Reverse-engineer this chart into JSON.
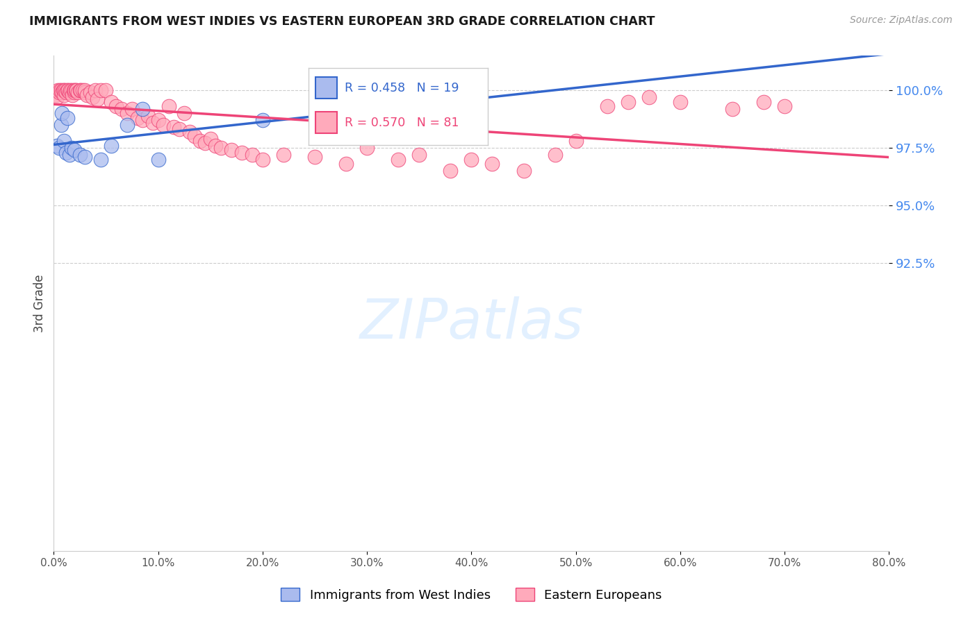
{
  "title": "IMMIGRANTS FROM WEST INDIES VS EASTERN EUROPEAN 3RD GRADE CORRELATION CHART",
  "source": "Source: ZipAtlas.com",
  "ylabel": "3rd Grade",
  "x_min": 0.0,
  "x_max": 80.0,
  "y_min": 80.0,
  "y_max": 101.5,
  "yticks": [
    92.5,
    95.0,
    97.5,
    100.0
  ],
  "xticks": [
    0.0,
    10.0,
    20.0,
    30.0,
    40.0,
    50.0,
    60.0,
    70.0,
    80.0
  ],
  "blue_R": 0.458,
  "blue_N": 19,
  "pink_R": 0.57,
  "pink_N": 81,
  "blue_color": "#AABBEE",
  "pink_color": "#FFAABB",
  "blue_line_color": "#3366CC",
  "pink_line_color": "#EE4477",
  "legend_label_blue": "Immigrants from West Indies",
  "legend_label_pink": "Eastern Europeans",
  "blue_x": [
    0.3,
    0.5,
    0.7,
    0.8,
    1.0,
    1.2,
    1.3,
    1.5,
    1.7,
    2.0,
    2.5,
    3.0,
    4.5,
    5.5,
    7.0,
    8.5,
    10.0,
    20.0,
    35.0
  ],
  "blue_y": [
    97.6,
    97.5,
    98.5,
    99.0,
    97.8,
    97.3,
    98.8,
    97.2,
    97.5,
    97.4,
    97.2,
    97.1,
    97.0,
    97.6,
    98.5,
    99.2,
    97.0,
    98.7,
    99.5
  ],
  "pink_x": [
    0.2,
    0.3,
    0.4,
    0.5,
    0.6,
    0.7,
    0.8,
    0.9,
    1.0,
    1.0,
    1.1,
    1.2,
    1.3,
    1.4,
    1.5,
    1.6,
    1.7,
    1.8,
    1.9,
    2.0,
    2.0,
    2.1,
    2.2,
    2.3,
    2.5,
    2.6,
    2.8,
    3.0,
    3.0,
    3.2,
    3.5,
    3.7,
    4.0,
    4.2,
    4.5,
    5.0,
    5.5,
    6.0,
    6.5,
    7.0,
    7.5,
    8.0,
    8.5,
    9.0,
    9.5,
    10.0,
    10.5,
    11.0,
    11.5,
    12.0,
    12.5,
    13.0,
    13.5,
    14.0,
    14.5,
    15.0,
    15.5,
    16.0,
    17.0,
    18.0,
    19.0,
    20.0,
    22.0,
    25.0,
    28.0,
    30.0,
    33.0,
    35.0,
    38.0,
    40.0,
    42.0,
    45.0,
    48.0,
    50.0,
    53.0,
    55.0,
    57.0,
    60.0,
    65.0,
    68.0,
    70.0
  ],
  "pink_y": [
    99.8,
    99.7,
    100.0,
    99.9,
    100.0,
    100.0,
    99.9,
    100.0,
    99.8,
    100.0,
    100.0,
    99.9,
    100.0,
    100.0,
    99.9,
    100.0,
    100.0,
    99.8,
    100.0,
    99.9,
    100.0,
    100.0,
    100.0,
    99.9,
    100.0,
    100.0,
    100.0,
    99.9,
    100.0,
    99.8,
    99.9,
    99.7,
    100.0,
    99.6,
    100.0,
    100.0,
    99.5,
    99.3,
    99.2,
    99.0,
    99.2,
    98.8,
    98.7,
    98.9,
    98.6,
    98.7,
    98.5,
    99.3,
    98.4,
    98.3,
    99.0,
    98.2,
    98.0,
    97.8,
    97.7,
    97.9,
    97.6,
    97.5,
    97.4,
    97.3,
    97.2,
    97.0,
    97.2,
    97.1,
    96.8,
    97.5,
    97.0,
    97.2,
    96.5,
    97.0,
    96.8,
    96.5,
    97.2,
    97.8,
    99.3,
    99.5,
    99.7,
    99.5,
    99.2,
    99.5,
    99.3
  ]
}
